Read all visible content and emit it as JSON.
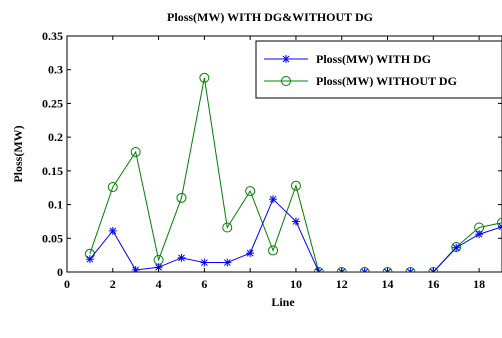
{
  "chart_data": {
    "type": "line",
    "title": "Ploss(MW) WITH DG&WITHOUT DG",
    "xlabel": "Line",
    "ylabel": "Ploss(MW)",
    "xlim": [
      0,
      19
    ],
    "ylim": [
      0,
      0.35
    ],
    "xticks": [
      "0",
      "2",
      "4",
      "6",
      "8",
      "10",
      "12",
      "14",
      "16",
      "18"
    ],
    "yticks": [
      "0",
      "0.05",
      "0.1",
      "0.15",
      "0.2",
      "0.25",
      "0.3",
      "0.35"
    ],
    "x": [
      1,
      2,
      3,
      4,
      5,
      6,
      7,
      8,
      9,
      10,
      11,
      12,
      13,
      14,
      15,
      16,
      17,
      18,
      19
    ],
    "legend_position": "top-right",
    "grid": false,
    "series": [
      {
        "name": "Ploss(MW) WITH DG",
        "color": "#0000ff",
        "marker": "asterisk",
        "values": [
          0.019,
          0.061,
          0.003,
          0.007,
          0.021,
          0.014,
          0.014,
          0.028,
          0.108,
          0.075,
          0.0,
          0.0,
          0.0,
          0.0,
          0.0,
          0.0,
          0.036,
          0.056,
          0.067
        ]
      },
      {
        "name": "Ploss(MW) WITHOUT DG",
        "color": "#008000",
        "marker": "circle",
        "values": [
          0.027,
          0.126,
          0.178,
          0.018,
          0.11,
          0.288,
          0.066,
          0.12,
          0.032,
          0.128,
          0.0,
          0.0,
          0.0,
          0.0,
          0.0,
          0.0,
          0.037,
          0.066,
          0.073
        ]
      }
    ]
  }
}
